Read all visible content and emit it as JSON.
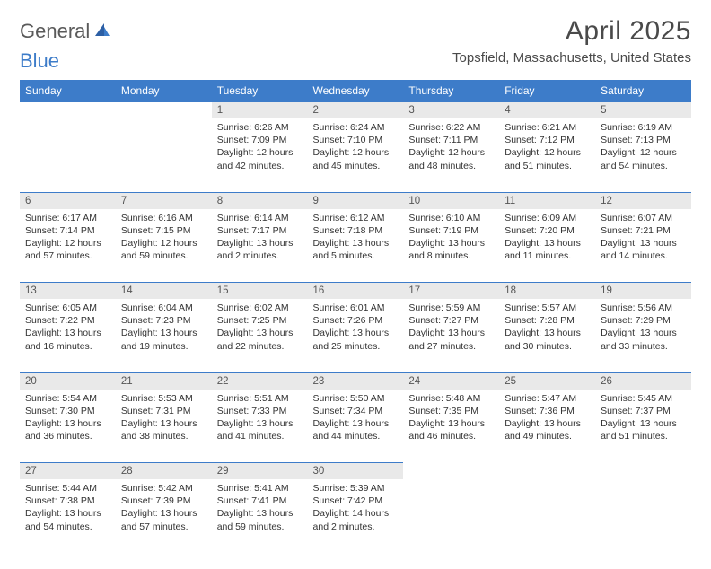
{
  "brand": {
    "part1": "General",
    "part2": "Blue"
  },
  "title": "April 2025",
  "location": "Topsfield, Massachusetts, United States",
  "colors": {
    "header_bg": "#3d7cc9",
    "daynum_bg": "#e9e9e9",
    "text": "#333333"
  },
  "day_headers": [
    "Sunday",
    "Monday",
    "Tuesday",
    "Wednesday",
    "Thursday",
    "Friday",
    "Saturday"
  ],
  "weeks": [
    [
      null,
      null,
      {
        "n": "1",
        "sr": "Sunrise: 6:26 AM",
        "ss": "Sunset: 7:09 PM",
        "d1": "Daylight: 12 hours",
        "d2": "and 42 minutes."
      },
      {
        "n": "2",
        "sr": "Sunrise: 6:24 AM",
        "ss": "Sunset: 7:10 PM",
        "d1": "Daylight: 12 hours",
        "d2": "and 45 minutes."
      },
      {
        "n": "3",
        "sr": "Sunrise: 6:22 AM",
        "ss": "Sunset: 7:11 PM",
        "d1": "Daylight: 12 hours",
        "d2": "and 48 minutes."
      },
      {
        "n": "4",
        "sr": "Sunrise: 6:21 AM",
        "ss": "Sunset: 7:12 PM",
        "d1": "Daylight: 12 hours",
        "d2": "and 51 minutes."
      },
      {
        "n": "5",
        "sr": "Sunrise: 6:19 AM",
        "ss": "Sunset: 7:13 PM",
        "d1": "Daylight: 12 hours",
        "d2": "and 54 minutes."
      }
    ],
    [
      {
        "n": "6",
        "sr": "Sunrise: 6:17 AM",
        "ss": "Sunset: 7:14 PM",
        "d1": "Daylight: 12 hours",
        "d2": "and 57 minutes."
      },
      {
        "n": "7",
        "sr": "Sunrise: 6:16 AM",
        "ss": "Sunset: 7:15 PM",
        "d1": "Daylight: 12 hours",
        "d2": "and 59 minutes."
      },
      {
        "n": "8",
        "sr": "Sunrise: 6:14 AM",
        "ss": "Sunset: 7:17 PM",
        "d1": "Daylight: 13 hours",
        "d2": "and 2 minutes."
      },
      {
        "n": "9",
        "sr": "Sunrise: 6:12 AM",
        "ss": "Sunset: 7:18 PM",
        "d1": "Daylight: 13 hours",
        "d2": "and 5 minutes."
      },
      {
        "n": "10",
        "sr": "Sunrise: 6:10 AM",
        "ss": "Sunset: 7:19 PM",
        "d1": "Daylight: 13 hours",
        "d2": "and 8 minutes."
      },
      {
        "n": "11",
        "sr": "Sunrise: 6:09 AM",
        "ss": "Sunset: 7:20 PM",
        "d1": "Daylight: 13 hours",
        "d2": "and 11 minutes."
      },
      {
        "n": "12",
        "sr": "Sunrise: 6:07 AM",
        "ss": "Sunset: 7:21 PM",
        "d1": "Daylight: 13 hours",
        "d2": "and 14 minutes."
      }
    ],
    [
      {
        "n": "13",
        "sr": "Sunrise: 6:05 AM",
        "ss": "Sunset: 7:22 PM",
        "d1": "Daylight: 13 hours",
        "d2": "and 16 minutes."
      },
      {
        "n": "14",
        "sr": "Sunrise: 6:04 AM",
        "ss": "Sunset: 7:23 PM",
        "d1": "Daylight: 13 hours",
        "d2": "and 19 minutes."
      },
      {
        "n": "15",
        "sr": "Sunrise: 6:02 AM",
        "ss": "Sunset: 7:25 PM",
        "d1": "Daylight: 13 hours",
        "d2": "and 22 minutes."
      },
      {
        "n": "16",
        "sr": "Sunrise: 6:01 AM",
        "ss": "Sunset: 7:26 PM",
        "d1": "Daylight: 13 hours",
        "d2": "and 25 minutes."
      },
      {
        "n": "17",
        "sr": "Sunrise: 5:59 AM",
        "ss": "Sunset: 7:27 PM",
        "d1": "Daylight: 13 hours",
        "d2": "and 27 minutes."
      },
      {
        "n": "18",
        "sr": "Sunrise: 5:57 AM",
        "ss": "Sunset: 7:28 PM",
        "d1": "Daylight: 13 hours",
        "d2": "and 30 minutes."
      },
      {
        "n": "19",
        "sr": "Sunrise: 5:56 AM",
        "ss": "Sunset: 7:29 PM",
        "d1": "Daylight: 13 hours",
        "d2": "and 33 minutes."
      }
    ],
    [
      {
        "n": "20",
        "sr": "Sunrise: 5:54 AM",
        "ss": "Sunset: 7:30 PM",
        "d1": "Daylight: 13 hours",
        "d2": "and 36 minutes."
      },
      {
        "n": "21",
        "sr": "Sunrise: 5:53 AM",
        "ss": "Sunset: 7:31 PM",
        "d1": "Daylight: 13 hours",
        "d2": "and 38 minutes."
      },
      {
        "n": "22",
        "sr": "Sunrise: 5:51 AM",
        "ss": "Sunset: 7:33 PM",
        "d1": "Daylight: 13 hours",
        "d2": "and 41 minutes."
      },
      {
        "n": "23",
        "sr": "Sunrise: 5:50 AM",
        "ss": "Sunset: 7:34 PM",
        "d1": "Daylight: 13 hours",
        "d2": "and 44 minutes."
      },
      {
        "n": "24",
        "sr": "Sunrise: 5:48 AM",
        "ss": "Sunset: 7:35 PM",
        "d1": "Daylight: 13 hours",
        "d2": "and 46 minutes."
      },
      {
        "n": "25",
        "sr": "Sunrise: 5:47 AM",
        "ss": "Sunset: 7:36 PM",
        "d1": "Daylight: 13 hours",
        "d2": "and 49 minutes."
      },
      {
        "n": "26",
        "sr": "Sunrise: 5:45 AM",
        "ss": "Sunset: 7:37 PM",
        "d1": "Daylight: 13 hours",
        "d2": "and 51 minutes."
      }
    ],
    [
      {
        "n": "27",
        "sr": "Sunrise: 5:44 AM",
        "ss": "Sunset: 7:38 PM",
        "d1": "Daylight: 13 hours",
        "d2": "and 54 minutes."
      },
      {
        "n": "28",
        "sr": "Sunrise: 5:42 AM",
        "ss": "Sunset: 7:39 PM",
        "d1": "Daylight: 13 hours",
        "d2": "and 57 minutes."
      },
      {
        "n": "29",
        "sr": "Sunrise: 5:41 AM",
        "ss": "Sunset: 7:41 PM",
        "d1": "Daylight: 13 hours",
        "d2": "and 59 minutes."
      },
      {
        "n": "30",
        "sr": "Sunrise: 5:39 AM",
        "ss": "Sunset: 7:42 PM",
        "d1": "Daylight: 14 hours",
        "d2": "and 2 minutes."
      },
      null,
      null,
      null
    ]
  ]
}
